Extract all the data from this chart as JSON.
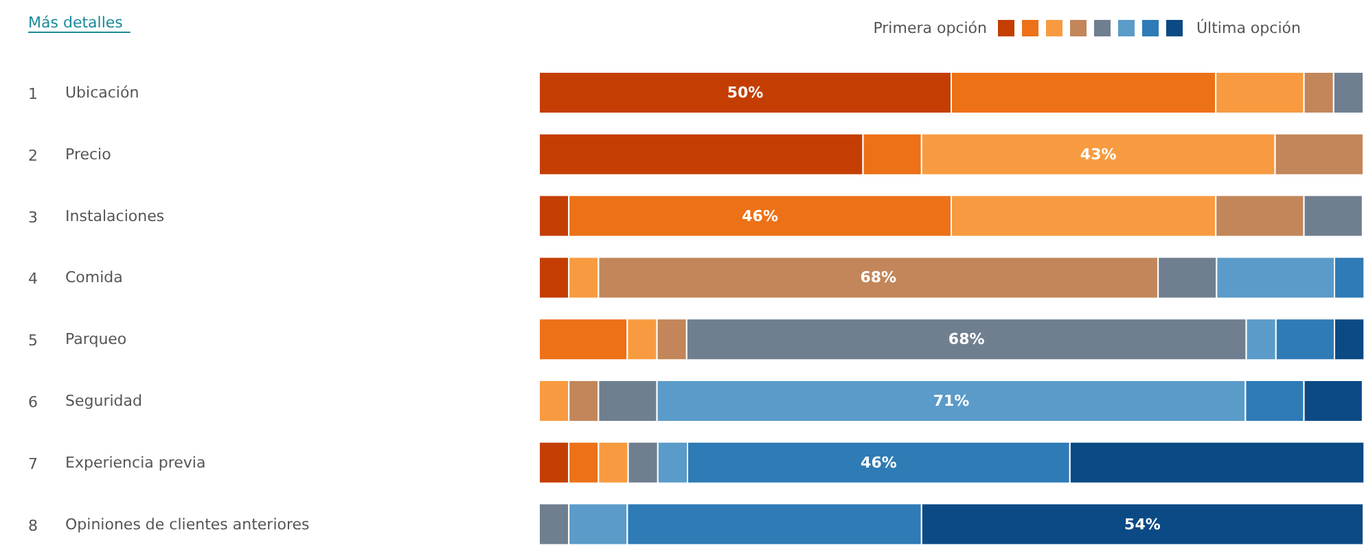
{
  "chart_data": {
    "type": "bar",
    "orientation": "horizontal",
    "stacked": true,
    "legend": "top right",
    "xlim": [
      0,
      100
    ],
    "annotations": [
      "Más detalles"
    ],
    "categories": [
      "1 Ubicación",
      "2 Precio",
      "3 Instalaciones",
      "4 Comida",
      "5 Parqueo",
      "6 Seguridad",
      "7 Experiencia previa",
      "8 Opiniones de clientes anteriores"
    ],
    "series": [
      {
        "name": "Primera opción",
        "color": "#c43e03",
        "values": [
          50,
          39.3,
          3.6,
          3.6,
          null,
          null,
          3.6,
          null
        ],
        "value_labels": [
          "50%",
          null,
          null,
          null,
          null,
          null,
          null,
          null
        ]
      },
      {
        "color": "#ed7117",
        "values": [
          32.1,
          7.1,
          46.4,
          null,
          10.7,
          null,
          3.6,
          null
        ],
        "value_labels": [
          null,
          null,
          "46%",
          null,
          null,
          null,
          null,
          null
        ]
      },
      {
        "color": "#f89b40",
        "values": [
          10.7,
          42.9,
          32.1,
          3.6,
          3.6,
          3.6,
          3.6,
          null
        ],
        "value_labels": [
          null,
          "43%",
          null,
          null,
          null,
          null,
          null,
          null
        ]
      },
      {
        "color": "#c2865a",
        "values": [
          3.6,
          10.7,
          10.7,
          67.9,
          3.6,
          3.6,
          null,
          null
        ],
        "value_labels": [
          null,
          null,
          null,
          "68%",
          null,
          null,
          null,
          null
        ]
      },
      {
        "color": "#6f7f90",
        "values": [
          3.6,
          null,
          7.1,
          7.1,
          67.9,
          7.1,
          3.6,
          3.6
        ],
        "value_labels": [
          null,
          null,
          null,
          null,
          "68%",
          null,
          null,
          null
        ]
      },
      {
        "color": "#5b9bc9",
        "values": [
          null,
          null,
          null,
          14.3,
          3.6,
          71.4,
          3.6,
          7.1
        ],
        "value_labels": [
          null,
          null,
          null,
          null,
          null,
          "71%",
          null,
          null
        ]
      },
      {
        "color": "#2e7bb6",
        "values": [
          null,
          null,
          null,
          3.6,
          7.1,
          7.1,
          46.4,
          35.7
        ],
        "value_labels": [
          null,
          null,
          null,
          null,
          null,
          null,
          "46%",
          null
        ]
      },
      {
        "name": "Última opción",
        "color": "#0b4a84",
        "values": [
          null,
          null,
          null,
          null,
          3.6,
          7.1,
          35.7,
          53.6
        ],
        "value_labels": [
          null,
          null,
          null,
          null,
          null,
          null,
          null,
          "54%"
        ]
      }
    ]
  }
}
